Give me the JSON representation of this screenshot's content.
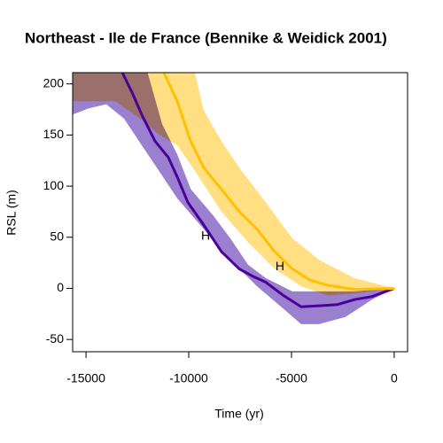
{
  "chart_data": {
    "type": "line",
    "title": "Northeast - Ile de France (Bennike & Weidick 2001)",
    "xlabel": "Time (yr)",
    "ylabel": "RSL (m)",
    "xlim": [
      -15650,
      650
    ],
    "ylim": [
      -62,
      211
    ],
    "xticks": [
      -15000,
      -10000,
      -5000,
      0
    ],
    "yticks": [
      -50,
      0,
      50,
      100,
      150,
      200
    ],
    "bands": [
      {
        "color": "#9b80d0",
        "upper": {
          "x": [
            -15650,
            -12300,
            -12000,
            -11300,
            -10560,
            -9900,
            -8800,
            -7980,
            -7110,
            -6250,
            -4960,
            -3660,
            -1940,
            0
          ],
          "values": [
            230,
            230,
            211,
            161,
            131,
            97,
            71,
            49,
            23,
            10,
            -3,
            -3,
            -3,
            0
          ]
        },
        "lower": {
          "x": [
            -15650,
            -14880,
            -14010,
            -13150,
            -12290,
            -11420,
            -10560,
            -9270,
            -7980,
            -6680,
            -5390,
            -4530,
            -3660,
            -2370,
            -1080,
            0
          ],
          "values": [
            170,
            176,
            180,
            166,
            140,
            114,
            88,
            58,
            28,
            2,
            -20,
            -35,
            -35,
            -28,
            -11,
            0
          ]
        }
      },
      {
        "color": "#ffdf82",
        "upper": {
          "x": [
            -15650,
            -10130,
            -9700,
            -9270,
            -8410,
            -7540,
            -6250,
            -4960,
            -3660,
            -1940,
            0
          ],
          "values": [
            230,
            230,
            211,
            174,
            144,
            118,
            84,
            49,
            28,
            10,
            0
          ]
        },
        "lower": {
          "x": [
            -15650,
            -13580,
            -12290,
            -11420,
            -10560,
            -9700,
            -8410,
            -7110,
            -5820,
            -4530,
            -3230,
            -1940,
            0
          ],
          "values": [
            183,
            183,
            165,
            150,
            140,
            115,
            75,
            45,
            19,
            2,
            -7,
            -5,
            0
          ]
        }
      }
    ],
    "series": [
      {
        "color": "#4a0099",
        "x": [
          -13230,
          -12720,
          -12290,
          -11640,
          -10990,
          -10560,
          -10040,
          -9270,
          -8410,
          -7540,
          -6900,
          -6250,
          -5390,
          -4530,
          -3660,
          -2800,
          -1940,
          -1080,
          0
        ],
        "values": [
          211,
          190,
          170,
          144,
          128,
          109,
          84,
          62,
          36,
          19,
          12,
          6,
          -7,
          -18,
          -17,
          -16,
          -11,
          -8,
          0
        ]
      },
      {
        "color": "#ffc000",
        "x": [
          -11210,
          -10560,
          -9910,
          -9270,
          -8410,
          -7540,
          -6680,
          -5820,
          -4960,
          -4100,
          -3230,
          -1940,
          0
        ],
        "values": [
          211,
          183,
          144,
          118,
          97,
          75,
          58,
          36,
          19,
          8,
          3,
          -1,
          0
        ]
      }
    ],
    "annotations": [
      {
        "text": "H",
        "x": -9180,
        "y": 51
      },
      {
        "text": "H",
        "x": -5560,
        "y": 21
      }
    ]
  }
}
